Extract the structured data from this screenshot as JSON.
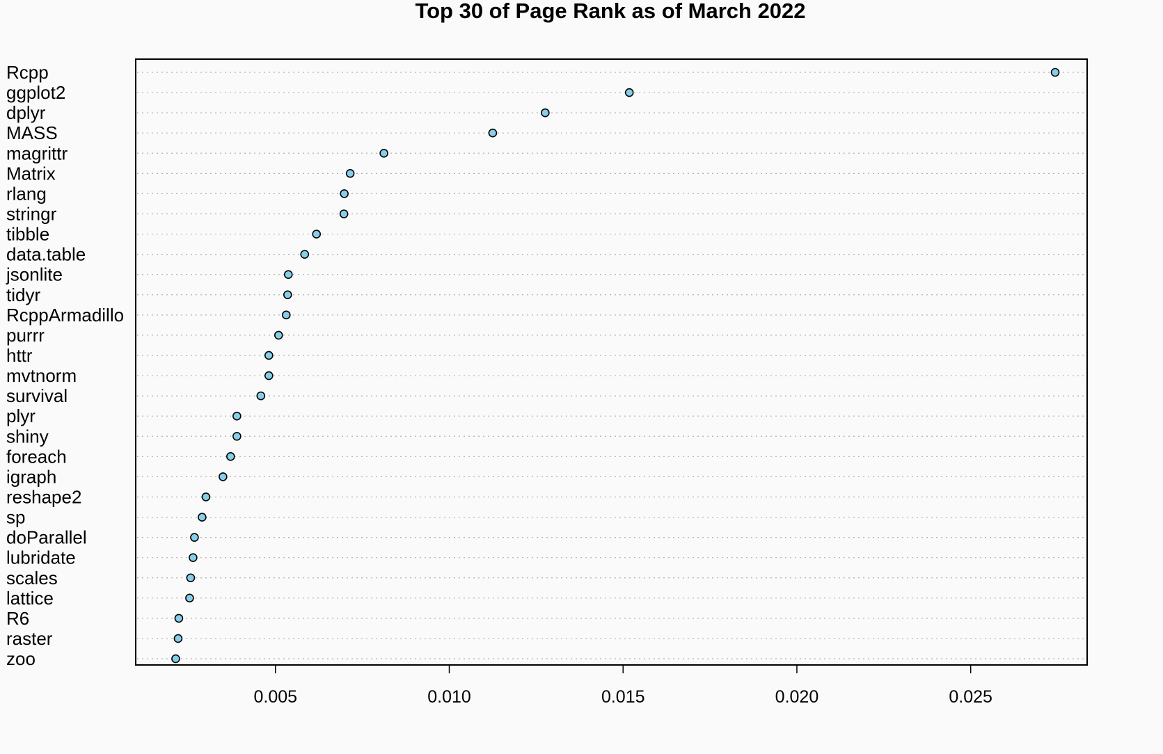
{
  "chart_data": {
    "type": "scatter",
    "subtype": "dotchart",
    "title": "Top 30 of Page Rank as of March 2022",
    "xlabel": "",
    "ylabel": "",
    "categories": [
      "Rcpp",
      "ggplot2",
      "dplyr",
      "MASS",
      "magrittr",
      "Matrix",
      "rlang",
      "stringr",
      "tibble",
      "data.table",
      "jsonlite",
      "tidyr",
      "RcppArmadillo",
      "purrr",
      "httr",
      "mvtnorm",
      "survival",
      "plyr",
      "shiny",
      "foreach",
      "igraph",
      "reshape2",
      "sp",
      "doParallel",
      "lubridate",
      "scales",
      "lattice",
      "R6",
      "raster",
      "zoo"
    ],
    "values": [
      0.02743,
      0.01518,
      0.01276,
      0.01125,
      0.00812,
      0.00715,
      0.00698,
      0.00697,
      0.00618,
      0.00584,
      0.00537,
      0.00535,
      0.00531,
      0.00509,
      0.00481,
      0.00481,
      0.00458,
      0.00389,
      0.00389,
      0.00371,
      0.00349,
      0.003,
      0.00289,
      0.00267,
      0.00263,
      0.00256,
      0.00253,
      0.00222,
      0.0022,
      0.00213
    ],
    "xlim": [
      0.00098,
      0.02835
    ],
    "xticks": [
      0.005,
      0.01,
      0.015,
      0.02,
      0.025
    ],
    "xtick_labels": [
      "0.005",
      "0.010",
      "0.015",
      "0.020",
      "0.025"
    ],
    "grid": "dotted horizontal guide lines per category",
    "legend": "none",
    "colors": {
      "point_fill": "#87ceeb",
      "point_stroke": "#000000",
      "guide_line": "#b0b0b0",
      "frame": "#000000",
      "background": "#fafafa"
    }
  }
}
